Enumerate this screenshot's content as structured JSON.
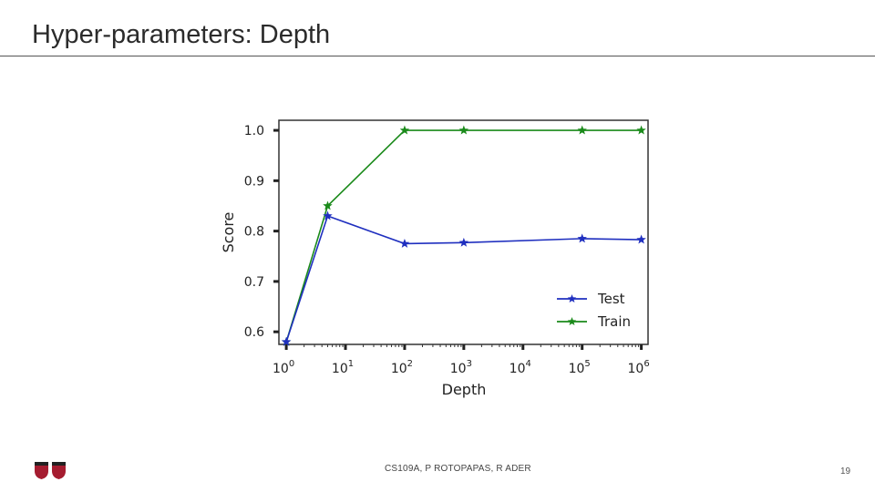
{
  "slide": {
    "title": "Hyper-parameters: Depth",
    "footer": "CS109A, P ROTOPAPAS, R ADER",
    "page_number": "19"
  },
  "chart_data": {
    "type": "line",
    "xscale": "log",
    "xlabel": "Depth",
    "ylabel": "Score",
    "xlim": [
      0.75,
      1300000
    ],
    "ylim": [
      0.575,
      1.02
    ],
    "x_ticks": [
      {
        "base": "10",
        "exp": "0",
        "value": 1
      },
      {
        "base": "10",
        "exp": "1",
        "value": 10
      },
      {
        "base": "10",
        "exp": "2",
        "value": 100
      },
      {
        "base": "10",
        "exp": "3",
        "value": 1000
      },
      {
        "base": "10",
        "exp": "4",
        "value": 10000
      },
      {
        "base": "10",
        "exp": "5",
        "value": 100000
      },
      {
        "base": "10",
        "exp": "6",
        "value": 1000000
      }
    ],
    "y_ticks": [
      "0.6",
      "0.7",
      "0.8",
      "0.9",
      "1.0"
    ],
    "y_tick_values": [
      0.6,
      0.7,
      0.8,
      0.9,
      1.0
    ],
    "x": [
      1,
      5,
      100,
      1000,
      100000,
      1000000
    ],
    "series": [
      {
        "name": "Test",
        "color": "#1f2fbf",
        "values": [
          0.58,
          0.83,
          0.775,
          0.777,
          0.785,
          0.783
        ]
      },
      {
        "name": "Train",
        "color": "#1a8a1a",
        "values": [
          0.58,
          0.85,
          1.0,
          1.0,
          1.0,
          1.0
        ]
      }
    ],
    "marker": "star",
    "legend_position": "lower-right",
    "grid": false
  }
}
